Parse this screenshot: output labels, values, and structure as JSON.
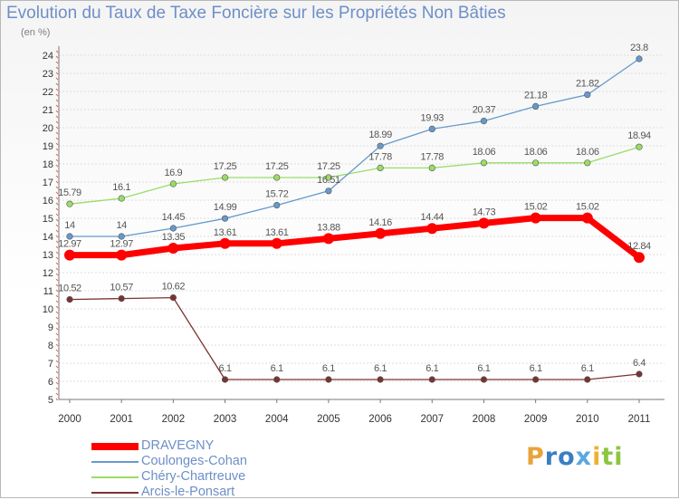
{
  "header": {
    "title": "Evolution du Taux de Taxe Foncière sur les Propriétés Non Bâties",
    "subtitle": "(en %)"
  },
  "logo": {
    "text": "Proxiti"
  },
  "chart_data": {
    "type": "line",
    "title": "Evolution du Taux de Taxe Foncière sur les Propriétés Non Bâties",
    "ylabel": "(en %)",
    "xlabel": "",
    "x": [
      "2000",
      "2001",
      "2002",
      "2003",
      "2004",
      "2005",
      "2006",
      "2007",
      "2008",
      "2009",
      "2010",
      "2011"
    ],
    "ylim": [
      5,
      24
    ],
    "yticks": [
      5,
      6,
      7,
      8,
      9,
      10,
      11,
      12,
      13,
      14,
      15,
      16,
      17,
      18,
      19,
      20,
      21,
      22,
      23,
      24
    ],
    "grid": "horizontal",
    "legend_position": "bottom-left",
    "series": [
      {
        "name": "DRAVEGNY",
        "color": "#ff0000",
        "values": [
          12.97,
          12.97,
          13.35,
          13.61,
          13.61,
          13.88,
          14.16,
          14.44,
          14.73,
          15.02,
          15.02,
          12.84
        ],
        "labels": [
          "12.97",
          "12.97",
          "13.35",
          "13.61",
          "13.61",
          "13.88",
          "14.16",
          "14.44",
          "14.73",
          "15.02",
          "15.02",
          "12.84"
        ]
      },
      {
        "name": "Coulonges-Cohan",
        "color": "#6699cc",
        "values": [
          14,
          14,
          14.45,
          14.99,
          15.72,
          16.51,
          18.99,
          19.93,
          20.37,
          21.18,
          21.82,
          23.8
        ],
        "labels": [
          "14",
          "14",
          "14.45",
          "14.99",
          "15.72",
          "16.51",
          "18.99",
          "19.93",
          "20.37",
          "21.18",
          "21.82",
          "23.8"
        ]
      },
      {
        "name": "Chéry-Chartreuve",
        "color": "#99dd66",
        "values": [
          15.79,
          16.1,
          16.9,
          17.25,
          17.25,
          17.25,
          17.78,
          17.78,
          18.06,
          18.06,
          18.06,
          18.94
        ],
        "labels": [
          "15.79",
          "16.1",
          "16.9",
          "17.25",
          "17.25",
          "17.25",
          "17.78",
          "17.78",
          "18.06",
          "18.06",
          "18.06",
          "18.94"
        ]
      },
      {
        "name": "Arcis-le-Ponsart",
        "color": "#7a3333",
        "values": [
          10.52,
          10.57,
          10.62,
          6.1,
          6.1,
          6.1,
          6.1,
          6.1,
          6.1,
          6.1,
          6.1,
          6.4
        ],
        "labels": [
          "10.52",
          "10.57",
          "10.62",
          "6.1",
          "6.1",
          "6.1",
          "6.1",
          "6.1",
          "6.1",
          "6.1",
          "6.1",
          "6.4"
        ]
      }
    ]
  }
}
